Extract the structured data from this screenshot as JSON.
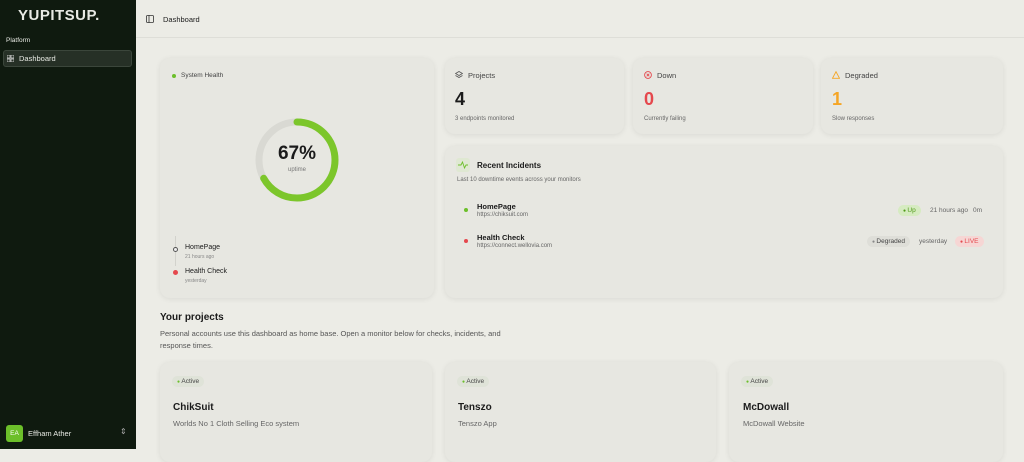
{
  "sidebar": {
    "logo": "YUPITSUP.",
    "section": "Platform",
    "nav": [
      {
        "label": "Dashboard"
      }
    ],
    "user": {
      "initials": "EA",
      "name": "Effham Ather"
    }
  },
  "header": {
    "title": "Dashboard"
  },
  "health": {
    "title": "System Health",
    "uptime": {
      "value": 67,
      "label": "67%"
    },
    "uptime_caption": "uptime",
    "monitors": [
      {
        "name": "HomePage",
        "time": "21 hours ago"
      },
      {
        "name": "Health Check",
        "time": "yesterday"
      }
    ]
  },
  "stats": [
    {
      "label": "Projects",
      "value": 4,
      "caption": "3 endpoints monitored"
    },
    {
      "label": "Down",
      "value": 0,
      "caption": "Currently failing"
    },
    {
      "label": "Degraded",
      "value": 1,
      "caption": "Slow responses"
    }
  ],
  "incidents": {
    "title": "Recent Incidents",
    "subtitle": "Last 10 downtime events across your monitors",
    "items": [
      {
        "name": "HomePage",
        "url": "https://chiksuit.com",
        "badge": "Up",
        "time": "21 hours ago",
        "duration": "0m"
      },
      {
        "name": "Health Check",
        "url": "https://connect.wellovia.com",
        "badge": "Degraded",
        "time": "yesterday",
        "live": "LIVE"
      }
    ]
  },
  "projects": {
    "title": "Your projects",
    "description": "Personal accounts use this dashboard as home base. Open a monitor below for checks, incidents, and response times.",
    "items": [
      {
        "status": "Active",
        "name": "ChikSuit",
        "description": "Worlds No 1 Cloth Selling Eco system"
      },
      {
        "status": "Active",
        "name": "Tenszo",
        "description": "Tenszo App"
      },
      {
        "status": "Active",
        "name": "McDowall",
        "description": "McDowall Website"
      }
    ]
  }
}
